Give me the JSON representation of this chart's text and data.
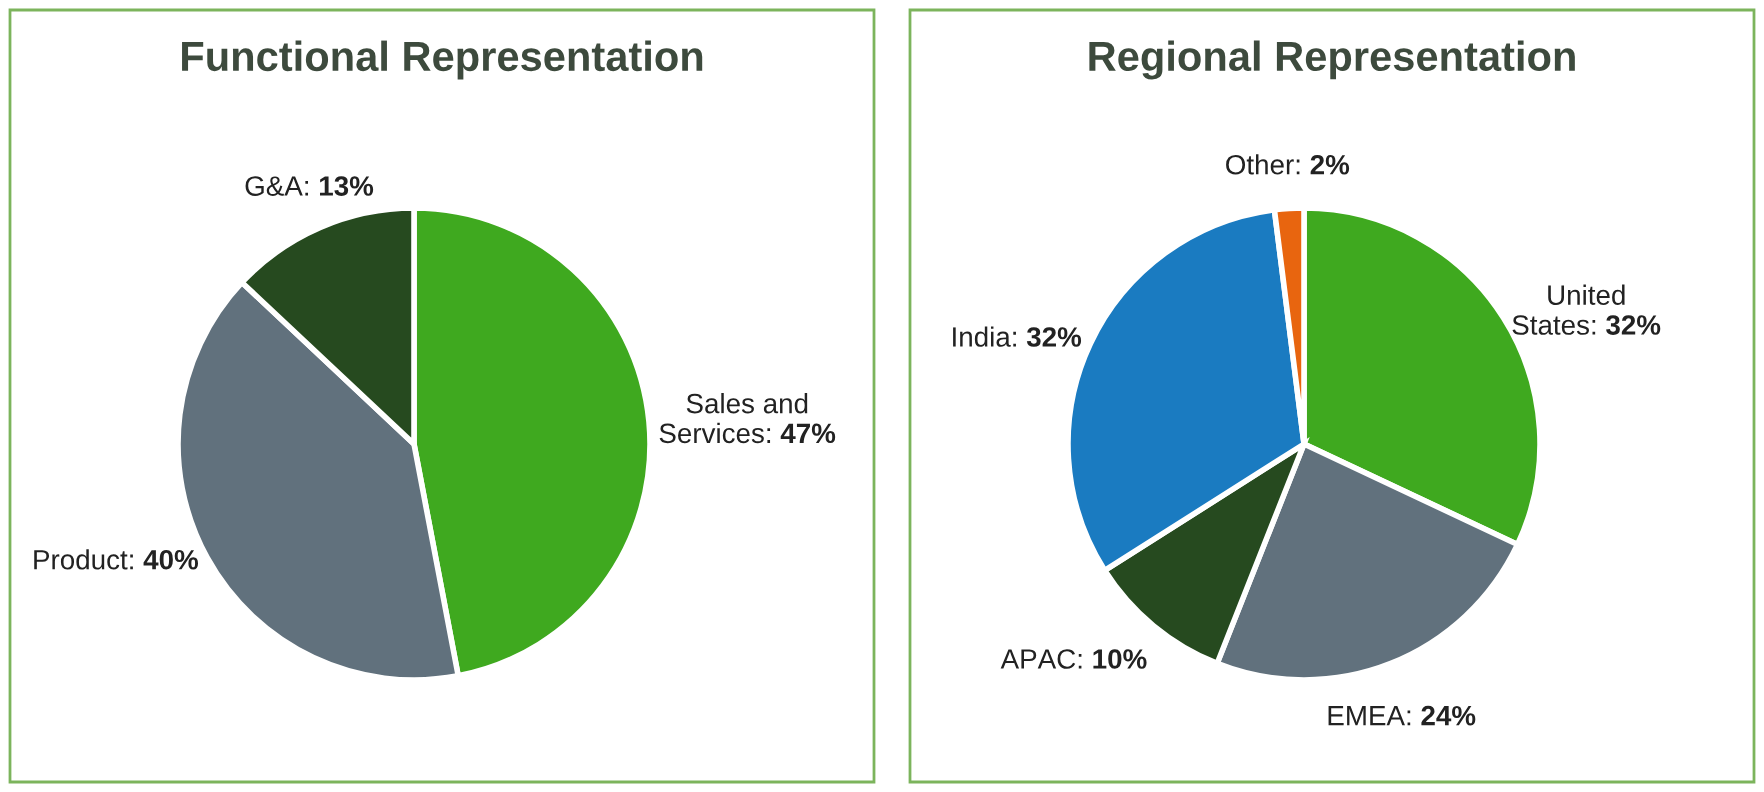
{
  "chart_data": [
    {
      "type": "pie",
      "title": "Functional Representation",
      "categories": [
        "Sales and\nServices",
        "Product",
        "G&A"
      ],
      "values": [
        47,
        40,
        13
      ],
      "value_labels": [
        "47%",
        "40%",
        "13%"
      ],
      "colors": [
        "#3fa91f",
        "#61717d",
        "#264a1f"
      ]
    },
    {
      "type": "pie",
      "title": "Regional Representation",
      "categories": [
        "United\nStates",
        "EMEA",
        "APAC",
        "India",
        "Other"
      ],
      "values": [
        32,
        24,
        10,
        32,
        2
      ],
      "value_labels": [
        "32%",
        "24%",
        "10%",
        "32%",
        "2%"
      ],
      "colors": [
        "#3fa91f",
        "#61717d",
        "#264a1f",
        "#1a7bc1",
        "#e8650f"
      ]
    }
  ]
}
